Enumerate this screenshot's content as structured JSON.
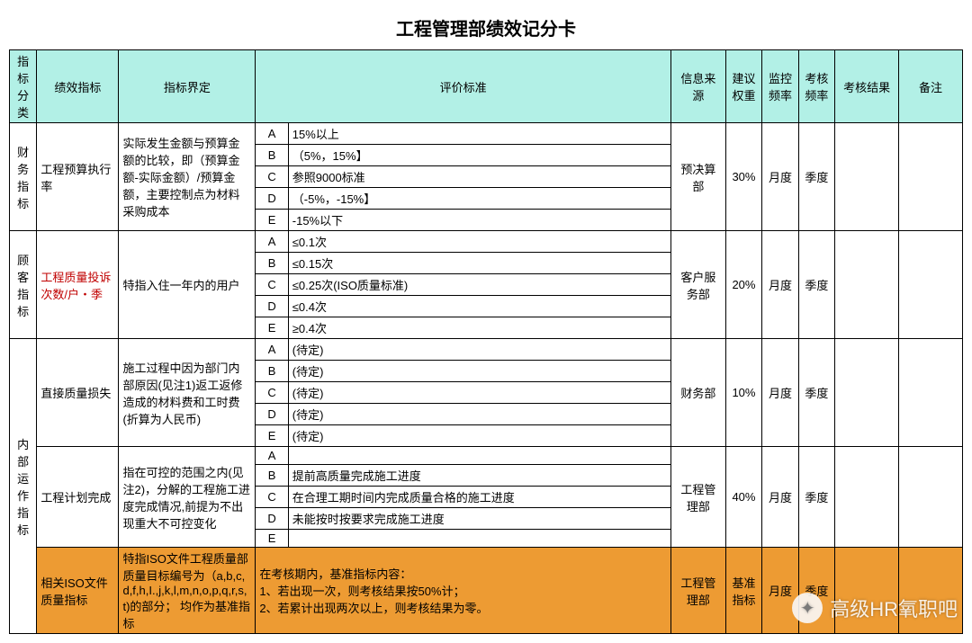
{
  "title": "工程管理部绩效记分卡",
  "columns": {
    "cat": "指标分类",
    "metric": "绩效指标",
    "def": "指标界定",
    "std": "评价标准",
    "src": "信息来源",
    "weight": "建议权重",
    "monfreq": "监控频率",
    "evalfreq": "考核频率",
    "result": "考核结果",
    "note": "备注"
  },
  "widths": {
    "cat": 30,
    "metric": 90,
    "def": 150,
    "grade": 36,
    "eval": 420,
    "src": 60,
    "weight": 40,
    "monfreq": 40,
    "evalfreq": 40,
    "result": 70,
    "note": 70
  },
  "groups": [
    {
      "cat": "财务指标",
      "metrics": [
        {
          "name": "工程预算执行率",
          "name_color": "#000",
          "def": "实际发生金额与预算金额的比较，即（预算金额-实际金额）/预算金额，主要控制点为材料采购成本",
          "grades": [
            {
              "g": "A",
              "v": "15%以上"
            },
            {
              "g": "B",
              "v": "（5%，15%】"
            },
            {
              "g": "C",
              "v": "参照9000标准"
            },
            {
              "g": "D",
              "v": "（-5%，-15%】"
            },
            {
              "g": "E",
              "v": "-15%以下"
            }
          ],
          "src": "预决算部",
          "weight": "30%",
          "mon": "月度",
          "eval": "季度"
        }
      ]
    },
    {
      "cat": "顾客指标",
      "metrics": [
        {
          "name": "工程质量投诉次数/户・季",
          "name_color": "#c00000",
          "def": "特指入住一年内的用户",
          "grades": [
            {
              "g": "A",
              "v": "≤0.1次"
            },
            {
              "g": "B",
              "v": "≤0.15次"
            },
            {
              "g": "C",
              "v": "≤0.25次(ISO质量标准)"
            },
            {
              "g": "D",
              "v": "≤0.4次"
            },
            {
              "g": "E",
              "v": "≥0.4次"
            }
          ],
          "src": "客户服务部",
          "weight": "20%",
          "mon": "月度",
          "eval": "季度"
        }
      ]
    },
    {
      "cat": "内部运作指标",
      "metrics": [
        {
          "name": "直接质量损失",
          "name_color": "#000",
          "def": "施工过程中因为部门内部原因(见注1)返工返修造成的材料费和工时费(折算为人民币)",
          "grades": [
            {
              "g": "A",
              "v": "(待定)"
            },
            {
              "g": "B",
              "v": "(待定)"
            },
            {
              "g": "C",
              "v": "(待定)"
            },
            {
              "g": "D",
              "v": "(待定)"
            },
            {
              "g": "E",
              "v": "(待定)"
            }
          ],
          "src": "财务部",
          "weight": "10%",
          "mon": "月度",
          "eval": "季度"
        },
        {
          "name": "工程计划完成",
          "name_color": "#000",
          "def": "指在可控的范围之内(见注2)，分解的工程施工进度完成情况,前提为不出现重大不可控变化",
          "grades": [
            {
              "g": "A",
              "v": ""
            },
            {
              "g": "B",
              "v": "提前高质量完成施工进度"
            },
            {
              "g": "C",
              "v": "在合理工期时间内完成质量合格的施工进度"
            },
            {
              "g": "D",
              "v": "未能按时按要求完成施工进度"
            },
            {
              "g": "E",
              "v": ""
            }
          ],
          "src": "工程管理部",
          "weight": "40%",
          "mon": "月度",
          "eval": "季度"
        },
        {
          "name": "相关ISO文件质量指标",
          "name_color": "#000",
          "def": "特指ISO文件工程质量部质量目标编号为（a,b,c,d,f,h,I.,j,k,l,m,n,o,p,q,r,s,t)的部分；  均作为基准指标",
          "full_text": "在考核期内，基准指标内容：\n1、若出现一次，则考核结果按50%计；\n2、若累计出现两次以上，则考核结果为零。",
          "src": "工程管理部",
          "weight": "基准指标",
          "mon": "月度",
          "eval": "季度",
          "highlight": true
        }
      ]
    }
  ],
  "watermark": "高级HR氧职吧"
}
